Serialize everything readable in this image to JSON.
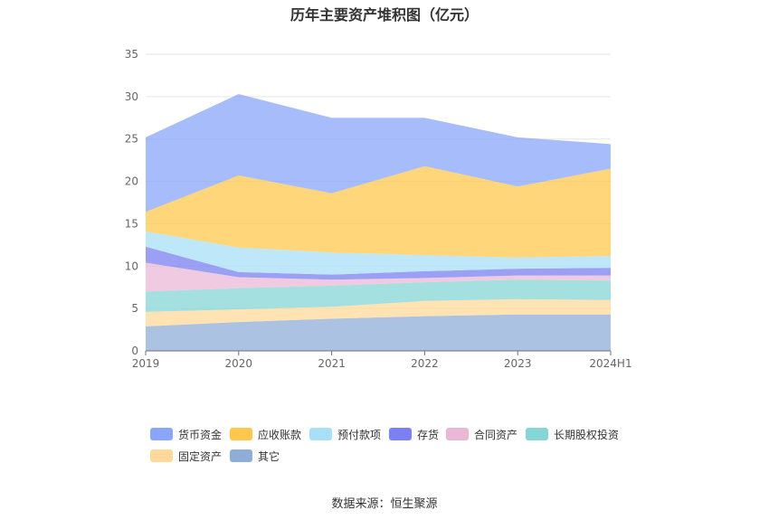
{
  "chart_data": {
    "type": "area",
    "stacked": true,
    "title": "历年主要资产堆积图（亿元）",
    "categories": [
      "2019",
      "2020",
      "2021",
      "2022",
      "2023",
      "2024H1"
    ],
    "ylim": [
      0,
      35
    ],
    "yticks": [
      "0",
      "5",
      "10",
      "15",
      "20",
      "25",
      "30",
      "35"
    ],
    "grid": true,
    "legend_position": "bottom",
    "series": [
      {
        "name": "其它",
        "color": "#8fadd9",
        "values": [
          2.9,
          3.4,
          3.8,
          4.1,
          4.3,
          4.3
        ]
      },
      {
        "name": "固定资产",
        "color": "#ffd999",
        "values": [
          1.7,
          1.5,
          1.4,
          1.8,
          1.8,
          1.7
        ]
      },
      {
        "name": "长期股权投资",
        "color": "#85d6d6",
        "values": [
          2.4,
          2.5,
          2.5,
          2.2,
          2.3,
          2.3
        ]
      },
      {
        "name": "合同资产",
        "color": "#eab8d6",
        "values": [
          3.4,
          1.3,
          0.7,
          0.5,
          0.5,
          0.6
        ]
      },
      {
        "name": "存货",
        "color": "#7b80f2",
        "values": [
          1.9,
          0.6,
          0.6,
          0.8,
          0.8,
          0.9
        ]
      },
      {
        "name": "预付款项",
        "color": "#a8e0f7",
        "values": [
          1.8,
          2.9,
          2.6,
          1.9,
          1.3,
          1.4
        ]
      },
      {
        "name": "应收账款",
        "color": "#ffc84d",
        "values": [
          2.3,
          8.5,
          7.0,
          10.5,
          8.4,
          10.3
        ]
      },
      {
        "name": "货币资金",
        "color": "#8aa6fa",
        "values": [
          8.8,
          9.6,
          8.9,
          5.7,
          5.8,
          2.9
        ]
      }
    ]
  },
  "legend": [
    {
      "label": "货币资金",
      "color": "#8aa6fa"
    },
    {
      "label": "应收账款",
      "color": "#ffc84d"
    },
    {
      "label": "预付款项",
      "color": "#a8e0f7"
    },
    {
      "label": "存货",
      "color": "#7b80f2"
    },
    {
      "label": "合同资产",
      "color": "#eab8d6"
    },
    {
      "label": "长期股权投资",
      "color": "#85d6d6"
    },
    {
      "label": "固定资产",
      "color": "#ffd999"
    },
    {
      "label": "其它",
      "color": "#8fadd9"
    }
  ],
  "source": "数据来源：恒生聚源"
}
